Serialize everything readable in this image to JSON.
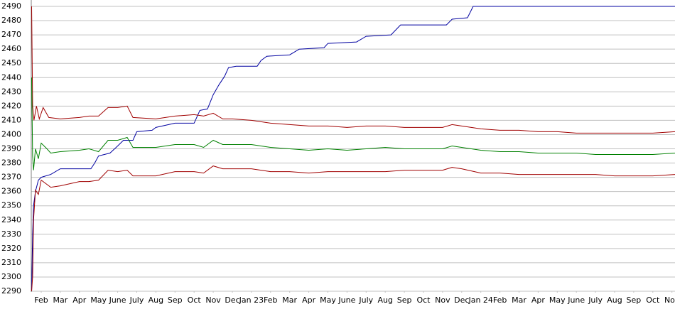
{
  "chart_data": {
    "type": "line",
    "xlim": [
      0.48,
      34.16
    ],
    "ylim": [
      2290,
      2490
    ],
    "yticks": [
      2290,
      2300,
      2310,
      2320,
      2330,
      2340,
      2350,
      2360,
      2370,
      2380,
      2390,
      2400,
      2410,
      2420,
      2430,
      2440,
      2450,
      2460,
      2470,
      2480,
      2490
    ],
    "xticks": [
      {
        "value": 1,
        "label": "Feb"
      },
      {
        "value": 2,
        "label": "Mar"
      },
      {
        "value": 3,
        "label": "Apr"
      },
      {
        "value": 4,
        "label": "May"
      },
      {
        "value": 5,
        "label": "June"
      },
      {
        "value": 6,
        "label": "July"
      },
      {
        "value": 7,
        "label": "Aug"
      },
      {
        "value": 8,
        "label": "Sep"
      },
      {
        "value": 9,
        "label": "Oct"
      },
      {
        "value": 10,
        "label": "Nov"
      },
      {
        "value": 11,
        "label": "Dec"
      },
      {
        "value": 12,
        "label": "Jan 23"
      },
      {
        "value": 13,
        "label": "Feb"
      },
      {
        "value": 14,
        "label": "Mar"
      },
      {
        "value": 15,
        "label": "Apr"
      },
      {
        "value": 16,
        "label": "May"
      },
      {
        "value": 17,
        "label": "June"
      },
      {
        "value": 18,
        "label": "July"
      },
      {
        "value": 19,
        "label": "Aug"
      },
      {
        "value": 20,
        "label": "Sep"
      },
      {
        "value": 21,
        "label": "Oct"
      },
      {
        "value": 22,
        "label": "Nov"
      },
      {
        "value": 23,
        "label": "Dec"
      },
      {
        "value": 24,
        "label": "Jan 24"
      },
      {
        "value": 25,
        "label": "Feb"
      },
      {
        "value": 26,
        "label": "Mar"
      },
      {
        "value": 27,
        "label": "Apr"
      },
      {
        "value": 28,
        "label": "May"
      },
      {
        "value": 29,
        "label": "June"
      },
      {
        "value": 30,
        "label": "July"
      },
      {
        "value": 31,
        "label": "Aug"
      },
      {
        "value": 32,
        "label": "Sep"
      },
      {
        "value": 33,
        "label": "Oct"
      },
      {
        "value": 34,
        "label": "Nov"
      }
    ],
    "grid": true,
    "series": [
      {
        "color": "#0000a0",
        "x": [
          0.5,
          0.55,
          0.6,
          0.7,
          0.85,
          1,
          1.5,
          2,
          3,
          3.6,
          3.8,
          4,
          4.6,
          5,
          5.3,
          5.8,
          6,
          6.8,
          7,
          8,
          9,
          9.3,
          9.7,
          10,
          10.3,
          10.6,
          10.8,
          11.2,
          12.3,
          12.5,
          12.8,
          14,
          14.5,
          15.8,
          16,
          17.5,
          18,
          19.3,
          19.8,
          22.2,
          22.5,
          23.3,
          23.6,
          34.16
        ],
        "values": [
          2290,
          2330,
          2350,
          2360,
          2368,
          2370,
          2372,
          2376,
          2376,
          2376,
          2380,
          2385,
          2387,
          2392,
          2396,
          2396,
          2402,
          2403,
          2405,
          2408,
          2408,
          2417,
          2418,
          2428,
          2435,
          2441,
          2447,
          2448,
          2448,
          2452,
          2455,
          2456,
          2460,
          2461,
          2464,
          2465,
          2469,
          2470,
          2477,
          2477,
          2481,
          2482,
          2490,
          2490
        ]
      },
      {
        "color": "#a00000",
        "x": [
          0.5,
          0.55,
          0.62,
          0.75,
          0.9,
          1.1,
          1.4,
          2,
          3,
          3.5,
          4,
          4.5,
          5,
          5.5,
          5.8,
          7,
          8,
          9,
          9.5,
          10,
          10.5,
          11,
          12,
          13,
          14,
          15,
          16,
          17,
          18,
          19,
          20,
          21,
          22,
          22.5,
          23,
          24,
          25,
          26,
          27,
          28,
          29,
          30,
          31,
          32,
          33,
          34.16
        ],
        "values": [
          2490,
          2420,
          2410,
          2420,
          2411,
          2419,
          2412,
          2411,
          2412,
          2413,
          2413,
          2419,
          2419,
          2420,
          2412,
          2411,
          2413,
          2414,
          2413,
          2415,
          2411,
          2411,
          2410,
          2408,
          2407,
          2406,
          2406,
          2405,
          2406,
          2406,
          2405,
          2405,
          2405,
          2407,
          2406,
          2404,
          2403,
          2403,
          2402,
          2402,
          2401,
          2401,
          2401,
          2401,
          2401,
          2402
        ]
      },
      {
        "color": "#008000",
        "x": [
          0.5,
          0.55,
          0.6,
          0.7,
          0.85,
          1,
          1.3,
          1.5,
          2,
          3,
          3.5,
          4,
          4.5,
          5,
          5.5,
          5.8,
          7,
          8,
          9,
          9.5,
          10,
          10.5,
          11,
          12,
          13,
          14,
          15,
          16,
          17,
          18,
          19,
          20,
          21,
          22,
          22.5,
          23,
          24,
          25,
          26,
          27,
          28,
          29,
          30,
          31,
          32,
          33,
          34.16
        ],
        "values": [
          2440,
          2385,
          2375,
          2390,
          2383,
          2394,
          2390,
          2387,
          2388,
          2389,
          2390,
          2388,
          2396,
          2396,
          2398,
          2391,
          2391,
          2393,
          2393,
          2391,
          2396,
          2393,
          2393,
          2393,
          2391,
          2390,
          2389,
          2390,
          2389,
          2390,
          2391,
          2390,
          2390,
          2390,
          2392,
          2391,
          2389,
          2388,
          2388,
          2387,
          2387,
          2387,
          2386,
          2386,
          2386,
          2386,
          2387
        ]
      },
      {
        "color": "#a00000",
        "x": [
          0.5,
          0.55,
          0.6,
          0.7,
          0.85,
          1,
          1.3,
          1.5,
          2,
          3,
          3.5,
          4,
          4.5,
          5,
          5.5,
          5.8,
          7,
          8,
          9,
          9.5,
          10,
          10.5,
          11,
          12,
          13,
          14,
          15,
          16,
          17,
          18,
          19,
          20,
          21,
          22,
          22.5,
          23,
          24,
          25,
          26,
          27,
          28,
          29,
          30,
          31,
          32,
          33,
          34.16
        ],
        "values": [
          2290,
          2300,
          2340,
          2361,
          2358,
          2368,
          2365,
          2363,
          2364,
          2367,
          2367,
          2368,
          2375,
          2374,
          2375,
          2371,
          2371,
          2374,
          2374,
          2373,
          2378,
          2376,
          2376,
          2376,
          2374,
          2374,
          2373,
          2374,
          2374,
          2374,
          2374,
          2375,
          2375,
          2375,
          2377,
          2376,
          2373,
          2373,
          2372,
          2372,
          2372,
          2372,
          2372,
          2371,
          2371,
          2371,
          2372
        ]
      }
    ]
  }
}
